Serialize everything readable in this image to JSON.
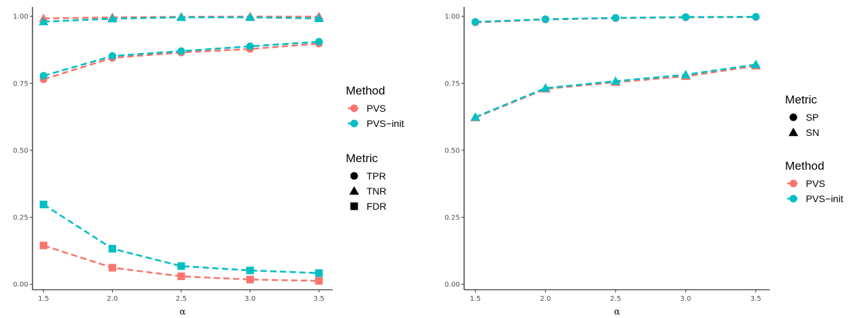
{
  "colors": {
    "PVS": "#F8766D",
    "PVS-init": "#00BFC4",
    "axis": "#000000",
    "tick_text": "#4d4d4d"
  },
  "chart_data": [
    {
      "type": "line",
      "xlabel": "α",
      "ylabel": "",
      "x": [
        1.5,
        2.0,
        2.5,
        3.0,
        3.5
      ],
      "xticks": [
        "1.5",
        "2.0",
        "2.5",
        "3.0",
        "3.5"
      ],
      "xlim": [
        1.42,
        3.6
      ],
      "ylim": [
        -0.02,
        1.035
      ],
      "yticks": [
        "0.00",
        "0.25",
        "0.50",
        "0.75",
        "1.00"
      ],
      "series": [
        {
          "method": "PVS",
          "metric": "TPR",
          "values": [
            0.765,
            0.845,
            0.865,
            0.878,
            0.898
          ]
        },
        {
          "method": "PVS-init",
          "metric": "TPR",
          "values": [
            0.778,
            0.852,
            0.87,
            0.888,
            0.905
          ]
        },
        {
          "method": "PVS",
          "metric": "TNR",
          "values": [
            0.992,
            0.996,
            0.998,
            0.999,
            0.999
          ]
        },
        {
          "method": "PVS-init",
          "metric": "TNR",
          "values": [
            0.98,
            0.991,
            0.996,
            0.996,
            0.992
          ]
        },
        {
          "method": "PVS",
          "metric": "FDR",
          "values": [
            0.145,
            0.062,
            0.03,
            0.018,
            0.013
          ]
        },
        {
          "method": "PVS-init",
          "metric": "FDR",
          "values": [
            0.298,
            0.133,
            0.068,
            0.052,
            0.042
          ]
        }
      ],
      "legend": {
        "groups": [
          {
            "title": "Method",
            "items": [
              "PVS",
              "PVS−init"
            ]
          },
          {
            "title": "Metric",
            "items": [
              "TPR",
              "TNR",
              "FDR"
            ]
          }
        ],
        "placement": "right"
      }
    },
    {
      "type": "line",
      "xlabel": "α",
      "ylabel": "",
      "x": [
        1.5,
        2.0,
        2.5,
        3.0,
        3.5
      ],
      "xticks": [
        "1.5",
        "2.0",
        "2.5",
        "3.0",
        "3.5"
      ],
      "xlim": [
        1.42,
        3.6
      ],
      "ylim": [
        -0.02,
        1.035
      ],
      "yticks": [
        "0.00",
        "0.25",
        "0.50",
        "0.75",
        "1.00"
      ],
      "series": [
        {
          "method": "PVS",
          "metric": "SP",
          "values": [
            0.977,
            0.988,
            0.993,
            0.996,
            0.997
          ]
        },
        {
          "method": "PVS-init",
          "metric": "SP",
          "values": [
            0.979,
            0.989,
            0.994,
            0.997,
            0.998
          ]
        },
        {
          "method": "PVS",
          "metric": "SN",
          "values": [
            0.622,
            0.729,
            0.754,
            0.776,
            0.815
          ]
        },
        {
          "method": "PVS-init",
          "metric": "SN",
          "values": [
            0.624,
            0.732,
            0.758,
            0.782,
            0.82
          ]
        }
      ],
      "legend": {
        "groups": [
          {
            "title": "Metric",
            "items": [
              "SP",
              "SN"
            ]
          },
          {
            "title": "Method",
            "items": [
              "PVS",
              "PVS−init"
            ]
          }
        ],
        "placement": "right"
      }
    }
  ]
}
